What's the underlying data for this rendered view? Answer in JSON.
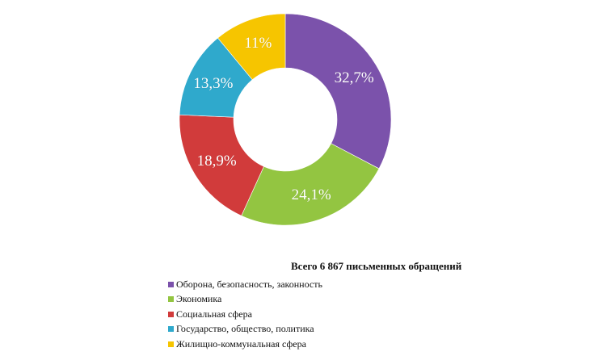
{
  "chart_data": {
    "type": "pie",
    "donut": true,
    "title": "Всего 6 867 письменных обращений",
    "categories": [
      "Оборона, безопасность, законность",
      "Экономика",
      "Социальная сфера",
      "Государство, общество, политика",
      "Жилищно-коммунальная сфера"
    ],
    "values": [
      32.7,
      24.1,
      18.9,
      13.3,
      11
    ],
    "labels": [
      "32,7%",
      "24,1%",
      "18,9%",
      "13,3%",
      "11%"
    ],
    "colors": [
      "#7b52ab",
      "#93c541",
      "#d13b3b",
      "#2fa9cc",
      "#f6c500"
    ],
    "legend_position": "bottom-left"
  }
}
